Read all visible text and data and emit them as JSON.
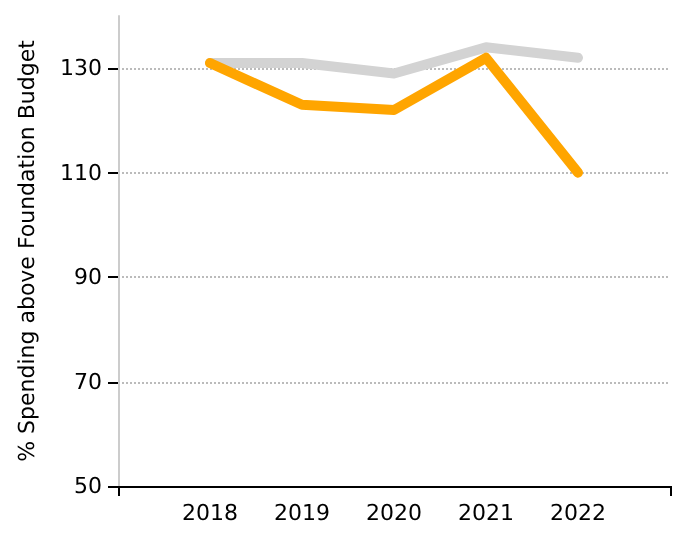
{
  "chart_data": {
    "type": "line",
    "ylabel": "% Spending above Foundation Budget",
    "x": [
      2018,
      2019,
      2020,
      2021,
      2022
    ],
    "series": [
      {
        "color": "#d3d3d3",
        "values": [
          131,
          131,
          129,
          134,
          132
        ]
      },
      {
        "color": "#ffa500",
        "values": [
          131,
          123,
          122,
          132,
          110
        ]
      }
    ],
    "xlim": [
      2017,
      2023
    ],
    "xticks": [
      {
        "value": 2017,
        "label": null
      },
      2018,
      2019,
      2020,
      2021,
      2022,
      {
        "value": 2023,
        "label": null
      }
    ],
    "ylim": [
      50,
      140
    ],
    "yticks": [
      50,
      70,
      90,
      110,
      130
    ],
    "grid": "y",
    "marker": "none",
    "line_style": "solid"
  }
}
